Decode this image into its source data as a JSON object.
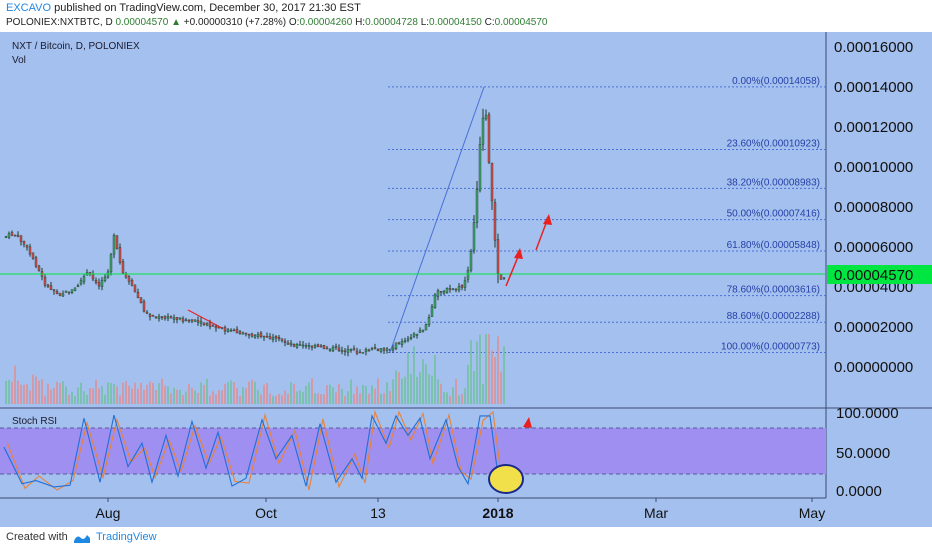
{
  "header": {
    "author": "EXCAVO",
    "published_text": "published on TradingView.com, December 30, 2017 21:30 EST",
    "symbol": "POLONIEX:NXTBTC, D",
    "price": "0.00004570",
    "change_arrow": "▲",
    "change": "+0.00000310 (+7.28%)",
    "o_label": "O:",
    "o_value": "0.00004260",
    "h_label": "H:",
    "h_value": "0.00004728",
    "l_label": "L:",
    "l_value": "0.00004150",
    "c_label": "C:",
    "c_value": "0.00004570"
  },
  "pane": {
    "title": "NXT / Bitcoin, D, POLONIEX",
    "vol_label": "Vol",
    "current_price_label": "0.00004570",
    "price_axis_ticks": [
      "0.00016000",
      "0.00014000",
      "0.00012000",
      "0.00010000",
      "0.00008000",
      "0.00006000",
      "0.00004000",
      "0.00002000",
      "0.00000000"
    ],
    "fib_levels": [
      "0.00%(0.00014058)",
      "23.60%(0.00010923)",
      "38.20%(0.00008983)",
      "50.00%(0.00007416)",
      "61.80%(0.00005848)",
      "78.60%(0.00003616)",
      "88.60%(0.00002288)",
      "100.00%(0.00000773)"
    ]
  },
  "rsi": {
    "title": "Stoch RSI",
    "axis_ticks": [
      "100.0000",
      "50.0000",
      "0.0000"
    ]
  },
  "time_axis": {
    "labels": [
      "Aug",
      "Oct",
      "13",
      "2018",
      "Mar",
      "May"
    ]
  },
  "footer": {
    "created_with": "Created with",
    "brand": "TradingView"
  },
  "colors": {
    "background": "#a4c0ee",
    "bull": "#3ea36d",
    "bear": "#d94a4a",
    "fib_line": "#4a6fd8",
    "current_price": "#00e640",
    "rsi_band": "#9f8ff0",
    "arrow": "#e82020",
    "highlight": "#f2e04a"
  },
  "chart_data": {
    "type": "candlestick",
    "title": "NXT / Bitcoin, D, POLONIEX",
    "x": [
      "Aug",
      "Oct",
      "13",
      "2018",
      "Mar",
      "May"
    ],
    "ylim": [
      0,
      0.00017
    ],
    "last_close": 4.57e-05,
    "fib_retracement": [
      {
        "ratio": 0.0,
        "price": 0.00014058
      },
      {
        "ratio": 0.236,
        "price": 0.00010923
      },
      {
        "ratio": 0.382,
        "price": 8.983e-05
      },
      {
        "ratio": 0.5,
        "price": 7.416e-05
      },
      {
        "ratio": 0.618,
        "price": 5.848e-05
      },
      {
        "ratio": 0.786,
        "price": 3.616e-05
      },
      {
        "ratio": 0.886,
        "price": 2.288e-05
      },
      {
        "ratio": 1.0,
        "price": 7.73e-06
      }
    ],
    "stoch_rsi_ylim": [
      0,
      100
    ]
  }
}
